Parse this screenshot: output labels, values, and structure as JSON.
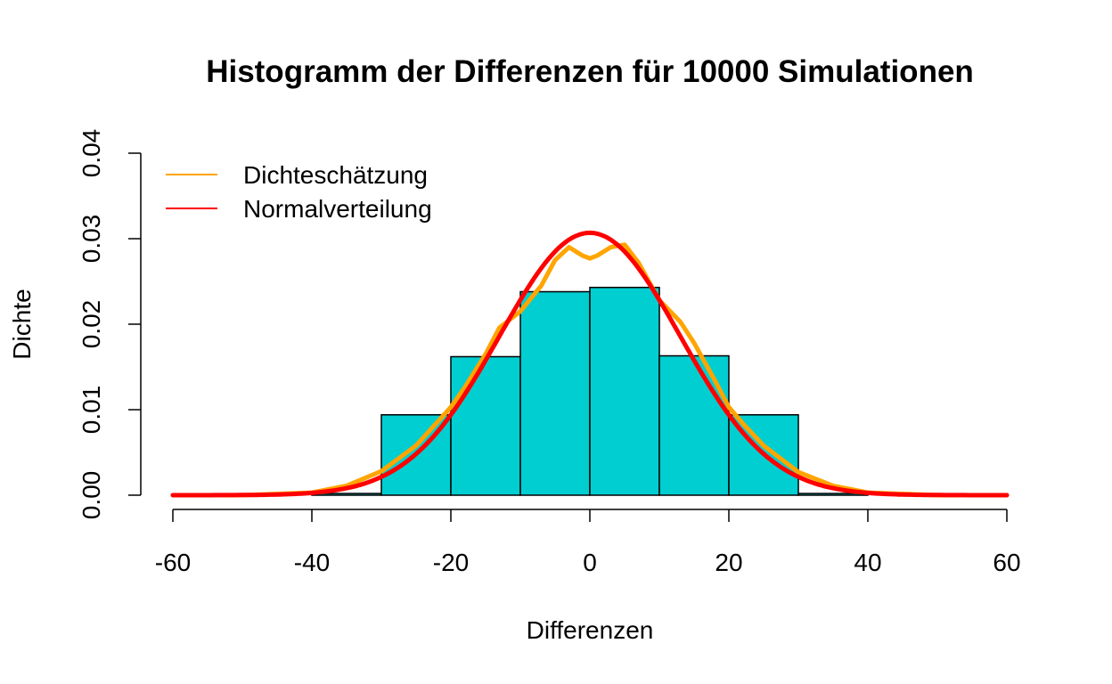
{
  "chart_data": {
    "type": "bar",
    "title": "Histogramm der Differenzen für 10000 Simulationen",
    "xlabel": "Differenzen",
    "ylabel": "Dichte",
    "xlim": [
      -60,
      60
    ],
    "ylim": [
      0,
      0.04
    ],
    "x_ticks": [
      "-60",
      "-40",
      "-20",
      "0",
      "20",
      "40",
      "60"
    ],
    "y_ticks": [
      "0.00",
      "0.01",
      "0.02",
      "0.03",
      "0.04"
    ],
    "bins": [
      {
        "from": -40,
        "to": -30,
        "density": 0.0002
      },
      {
        "from": -30,
        "to": -20,
        "density": 0.0094
      },
      {
        "from": -20,
        "to": -10,
        "density": 0.0162
      },
      {
        "from": -10,
        "to": 0,
        "density": 0.0238
      },
      {
        "from": 0,
        "to": 10,
        "density": 0.0243
      },
      {
        "from": 10,
        "to": 20,
        "density": 0.0163
      },
      {
        "from": 20,
        "to": 30,
        "density": 0.0094
      },
      {
        "from": 30,
        "to": 40,
        "density": 0.0002
      }
    ],
    "bar_color": "#00CED1",
    "series": [
      {
        "name": "Dichteschätzung",
        "color": "#FFA500",
        "x": [
          -60,
          -50,
          -40,
          -35,
          -30,
          -25,
          -22,
          -20,
          -18,
          -15,
          -13,
          -10,
          -7,
          -5,
          -3,
          -1,
          0,
          1,
          3,
          5,
          7,
          10,
          13,
          15,
          18,
          20,
          22,
          25,
          30,
          35,
          40,
          50,
          60
        ],
        "y": [
          0.0,
          0.0,
          0.0003,
          0.0011,
          0.0028,
          0.0058,
          0.0085,
          0.0103,
          0.0126,
          0.0165,
          0.0196,
          0.0215,
          0.0245,
          0.0275,
          0.029,
          0.028,
          0.0277,
          0.028,
          0.029,
          0.0293,
          0.0272,
          0.0228,
          0.0203,
          0.0178,
          0.0134,
          0.0103,
          0.0084,
          0.0058,
          0.0027,
          0.0011,
          0.0003,
          0.0,
          0.0
        ]
      },
      {
        "name": "Normalverteilung",
        "color": "#FF0000",
        "mean": 0,
        "sd": 13
      }
    ],
    "legend": "top-left",
    "grid": false
  }
}
